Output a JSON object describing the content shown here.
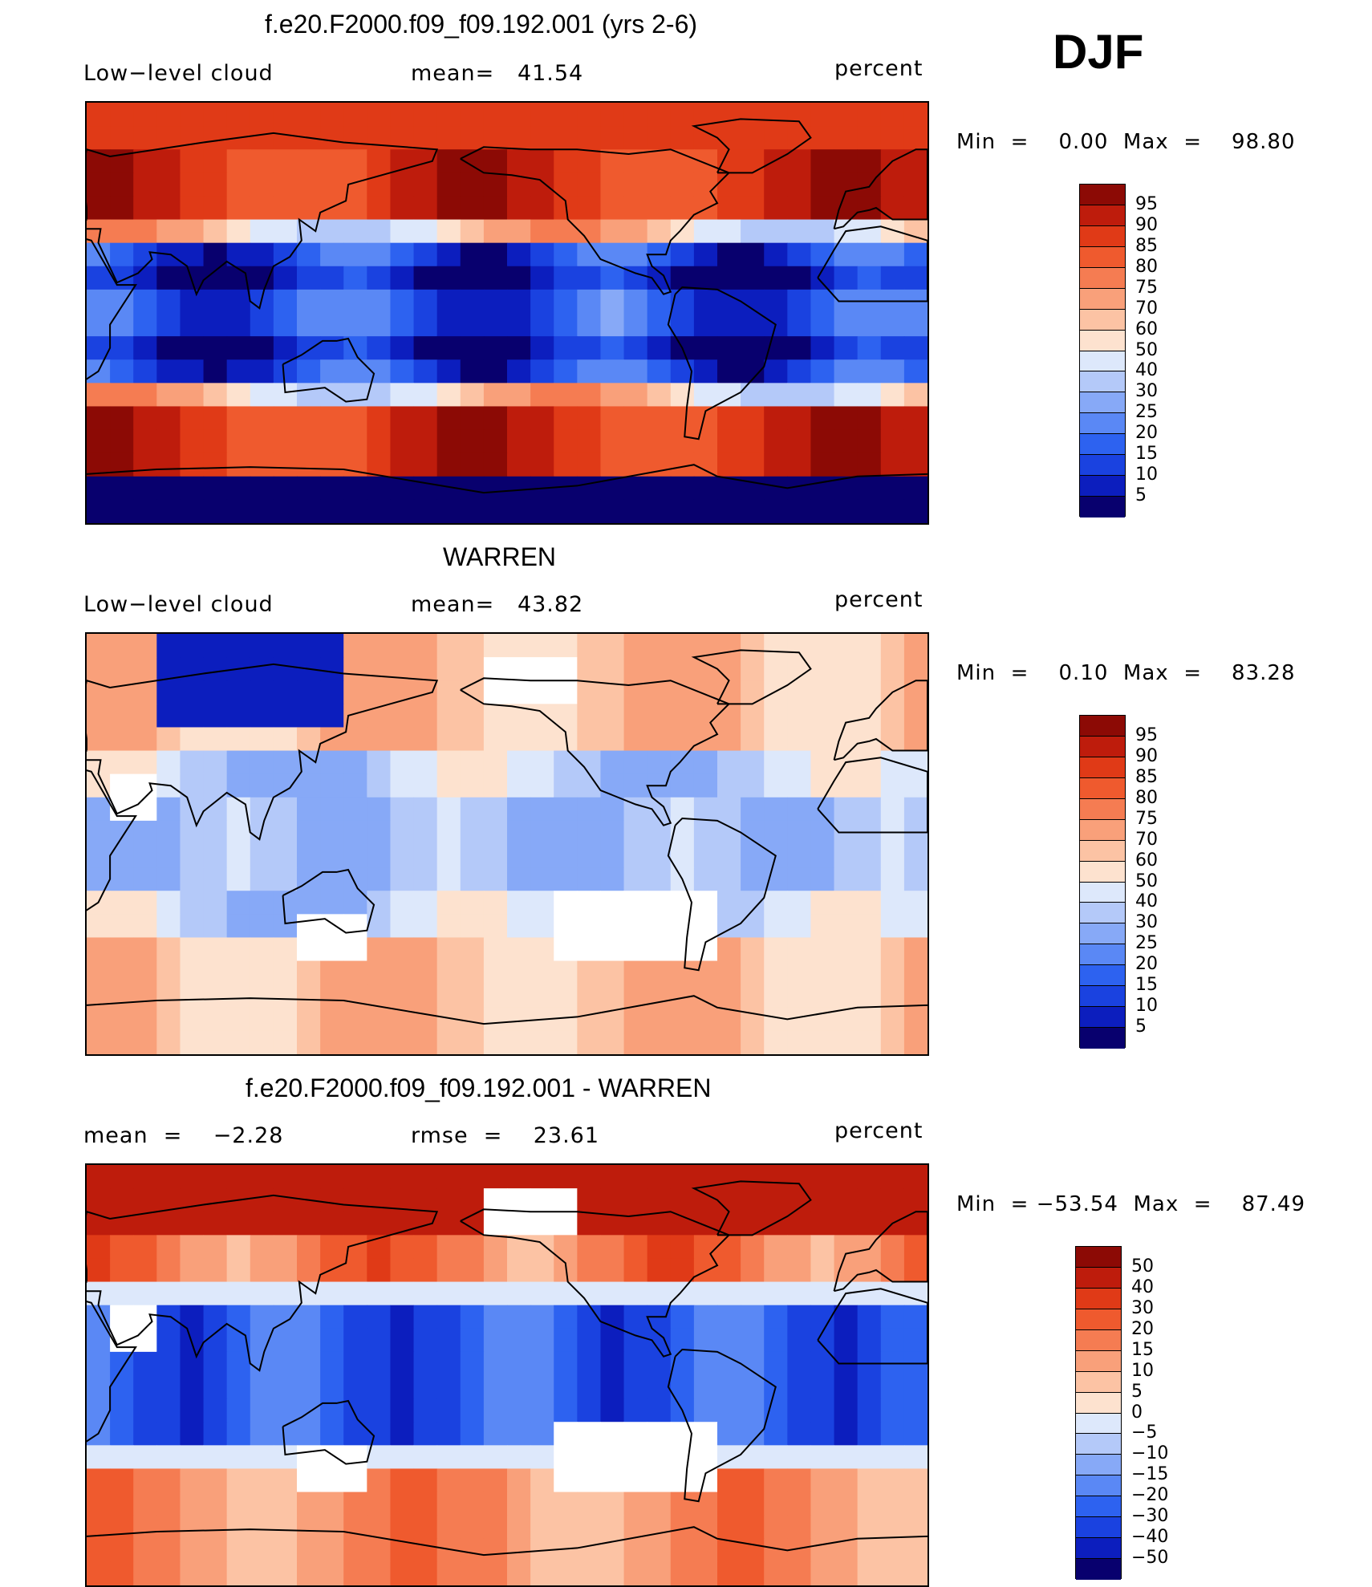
{
  "season": "DJF",
  "chart_data": [
    {
      "type": "heatmap",
      "title": "f.e20.F2000.f09_f09.192.001 (yrs 2-6)",
      "left_label": "Low−level cloud",
      "mid_label": "mean=   41.54",
      "units": "percent",
      "min_max": "Min  =    0.00  Max  =    98.80",
      "min": 0.0,
      "max": 98.8,
      "colorbar_levels": [
        "95",
        "90",
        "85",
        "80",
        "75",
        "70",
        "60",
        "50",
        "40",
        "30",
        "25",
        "20",
        "15",
        "10",
        "5"
      ]
    },
    {
      "type": "heatmap",
      "title": "WARREN",
      "left_label": "Low−level cloud",
      "mid_label": "mean=   43.82",
      "units": "percent",
      "min_max": "Min  =    0.10  Max  =    83.28",
      "min": 0.1,
      "max": 83.28,
      "colorbar_levels": [
        "95",
        "90",
        "85",
        "80",
        "75",
        "70",
        "60",
        "50",
        "40",
        "30",
        "25",
        "20",
        "15",
        "10",
        "5"
      ]
    },
    {
      "type": "heatmap",
      "title": "f.e20.F2000.f09_f09.192.001 - WARREN",
      "left_label": "mean  =    −2.28",
      "mid_label": "rmse  =    23.61",
      "units": "percent",
      "min_max": "Min  = −53.54  Max  =    87.49",
      "min": -53.54,
      "max": 87.49,
      "colorbar_levels": [
        "50",
        "40",
        "30",
        "20",
        "15",
        "10",
        "5",
        "0",
        "−5",
        "−10",
        "−15",
        "−20",
        "−30",
        "−40",
        "−50"
      ]
    }
  ],
  "colors": {
    "scale": [
      "#08006e",
      "#0c1ebe",
      "#1a42e0",
      "#2d62f0",
      "#5a88f5",
      "#87a9f7",
      "#b4c9f9",
      "#dde8fb",
      "#fde2cf",
      "#fcc3a4",
      "#f9a07a",
      "#f57c52",
      "#ef5a2e",
      "#e03a17",
      "#be1c0c",
      "#8c0a05"
    ]
  }
}
